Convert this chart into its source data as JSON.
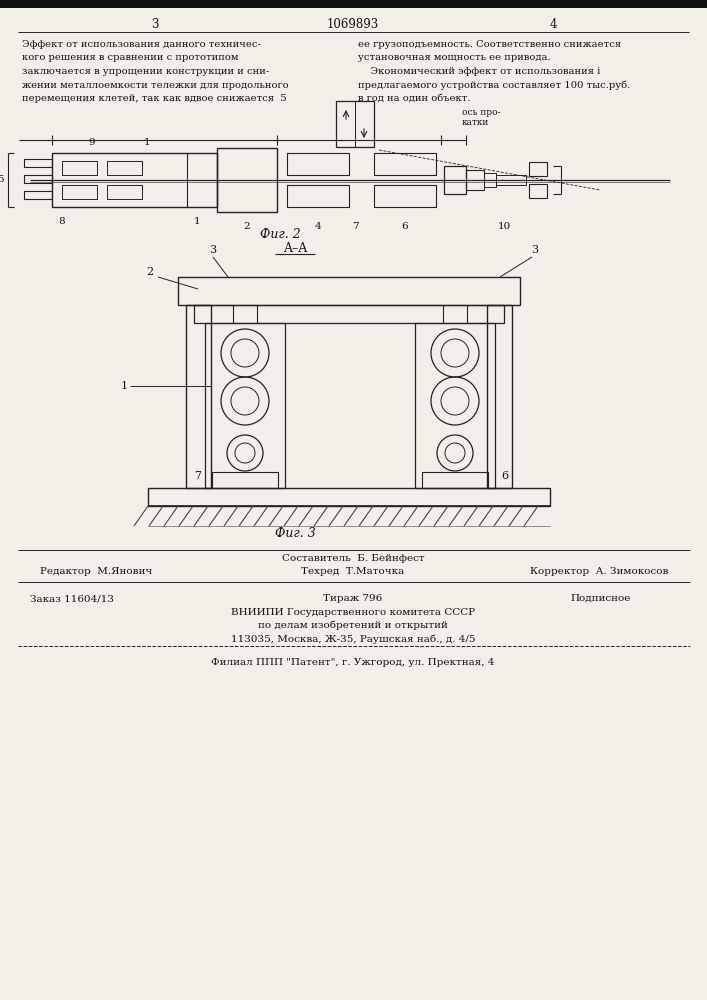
{
  "bg_color": "#f2efe9",
  "text_color": "#111111",
  "line_color": "#222222",
  "page_numbers": [
    "3",
    "4"
  ],
  "patent_number": "1069893",
  "text_left_col": [
    "Эффект от использования данного техничес-",
    "кого решения в сравнении с прототипом",
    "заключается в упрощении конструкции и сни-",
    "жении металлоемкости тележки для продольного",
    "перемещения клетей, так как вдвое снижается  5"
  ],
  "text_right_col": [
    "ее грузоподъемность. Соответственно снижается",
    "установочная мощность ее привода.",
    "    Экономический эффект от использования і",
    "предлагаемого устройства составляет 100 тыс.руб.",
    "в год на один объект."
  ],
  "fig2_label": "Фиг. 2",
  "fig3_label": "Фиг. 3",
  "section_label": "A–A",
  "footer_stavitel": "Составитель  Б. Бейнфест",
  "footer_editor": "Редактор  М.Янович",
  "footer_tech": "Техред  Т.Маточка",
  "footer_corrector": "Корректор  А. Зимокосов",
  "footer_order": "Заказ 11604/13",
  "footer_tirazh": "Тираж 796",
  "footer_podpisnoe": "Подписное",
  "footer_vniip1": "ВНИИПИ Государственного комитета СССР",
  "footer_vniip2": "по делам изобретений и открытий",
  "footer_vniip3": "113035, Москва, Ж-35, Раушская наб., д. 4/5",
  "footer_filial": "Филиал ППП \"Патент\", г. Ужгород, ул. Пректная, 4"
}
